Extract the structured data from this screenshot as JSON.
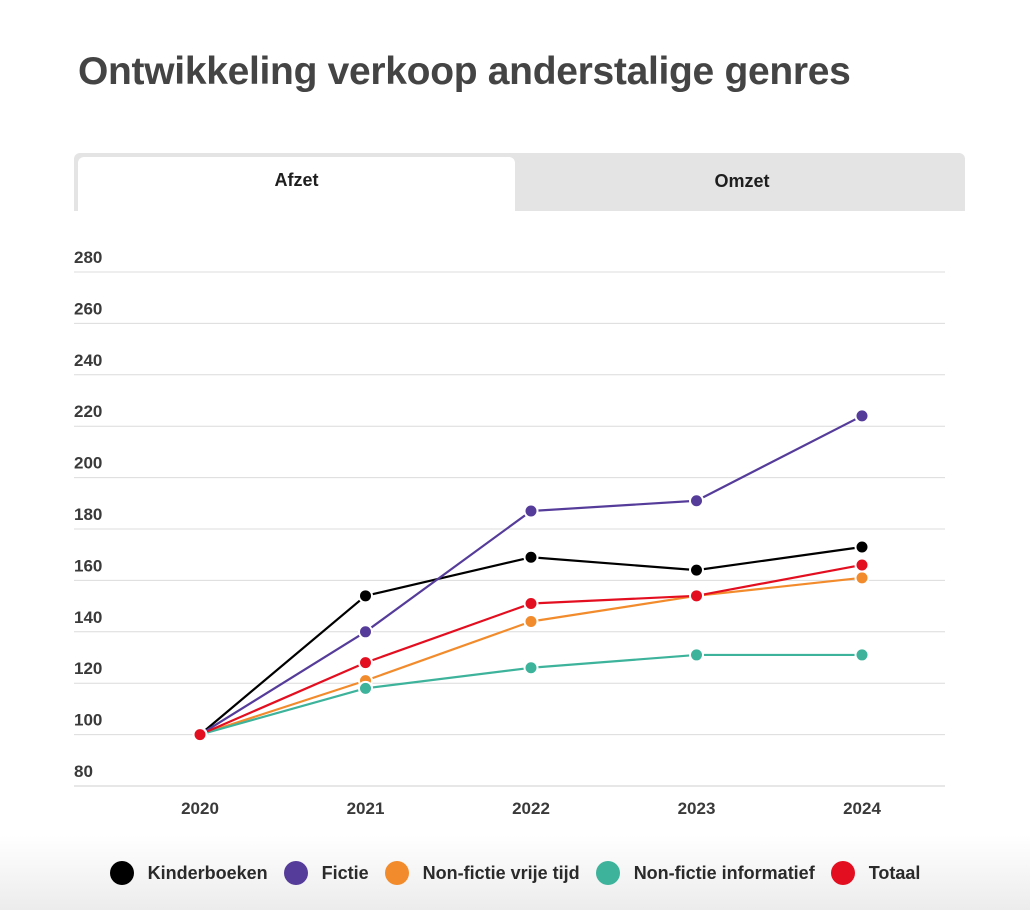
{
  "title": "Ontwikkeling verkoop anderstalige genres",
  "tabs": [
    {
      "label": "Afzet",
      "active": true
    },
    {
      "label": "Omzet",
      "active": false
    }
  ],
  "chart_data": {
    "type": "line",
    "title": "Ontwikkeling verkoop anderstalige genres",
    "xlabel": "",
    "ylabel": "",
    "categories": [
      "2020",
      "2021",
      "2022",
      "2023",
      "2024"
    ],
    "ylim": [
      80,
      280
    ],
    "yticks": [
      80,
      100,
      120,
      140,
      160,
      180,
      200,
      220,
      240,
      260,
      280
    ],
    "grid": true,
    "legend_position": "bottom",
    "series": [
      {
        "name": "Kinderboeken",
        "color": "#000000",
        "values": [
          100,
          154,
          169,
          164,
          173
        ]
      },
      {
        "name": "Fictie",
        "color": "#553c9a",
        "values": [
          100,
          140,
          187,
          191,
          224
        ]
      },
      {
        "name": "Non-fictie vrije tijd",
        "color": "#f28b2c",
        "values": [
          100,
          121,
          144,
          154,
          161
        ]
      },
      {
        "name": "Non-fictie informatief",
        "color": "#3db39b",
        "values": [
          100,
          118,
          126,
          131,
          131
        ]
      },
      {
        "name": "Totaal",
        "color": "#e30f20",
        "values": [
          100,
          128,
          151,
          154,
          166
        ]
      }
    ]
  }
}
